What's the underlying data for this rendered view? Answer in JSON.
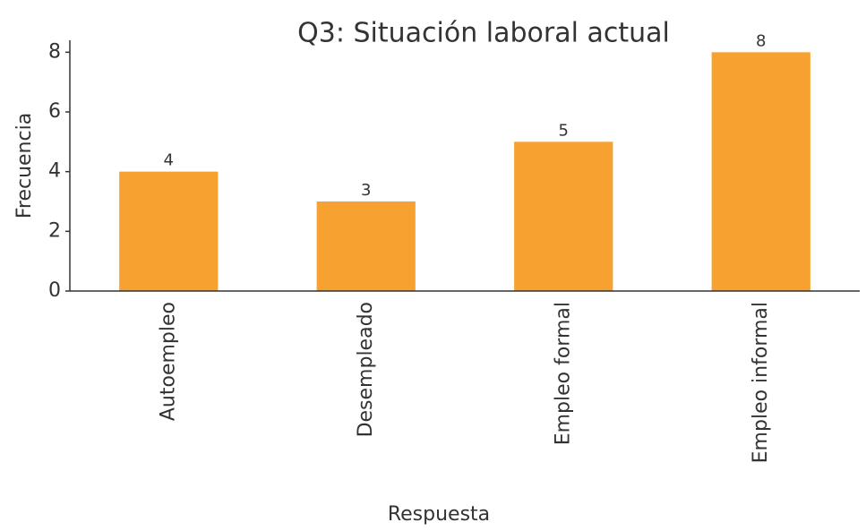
{
  "chart_data": {
    "type": "bar",
    "title": "Q3: Situación laboral actual",
    "x_label": "Respuesta",
    "y_label": "Frecuencia",
    "categories": [
      "Autoempleo",
      "Desempleado",
      "Empleo formal",
      "Empleo informal"
    ],
    "values": [
      4,
      3,
      5,
      8
    ],
    "color": "#f7a230",
    "ylim": [
      0,
      8.4
    ],
    "yticks": [
      0,
      2,
      4,
      6,
      8
    ],
    "grid": false
  }
}
